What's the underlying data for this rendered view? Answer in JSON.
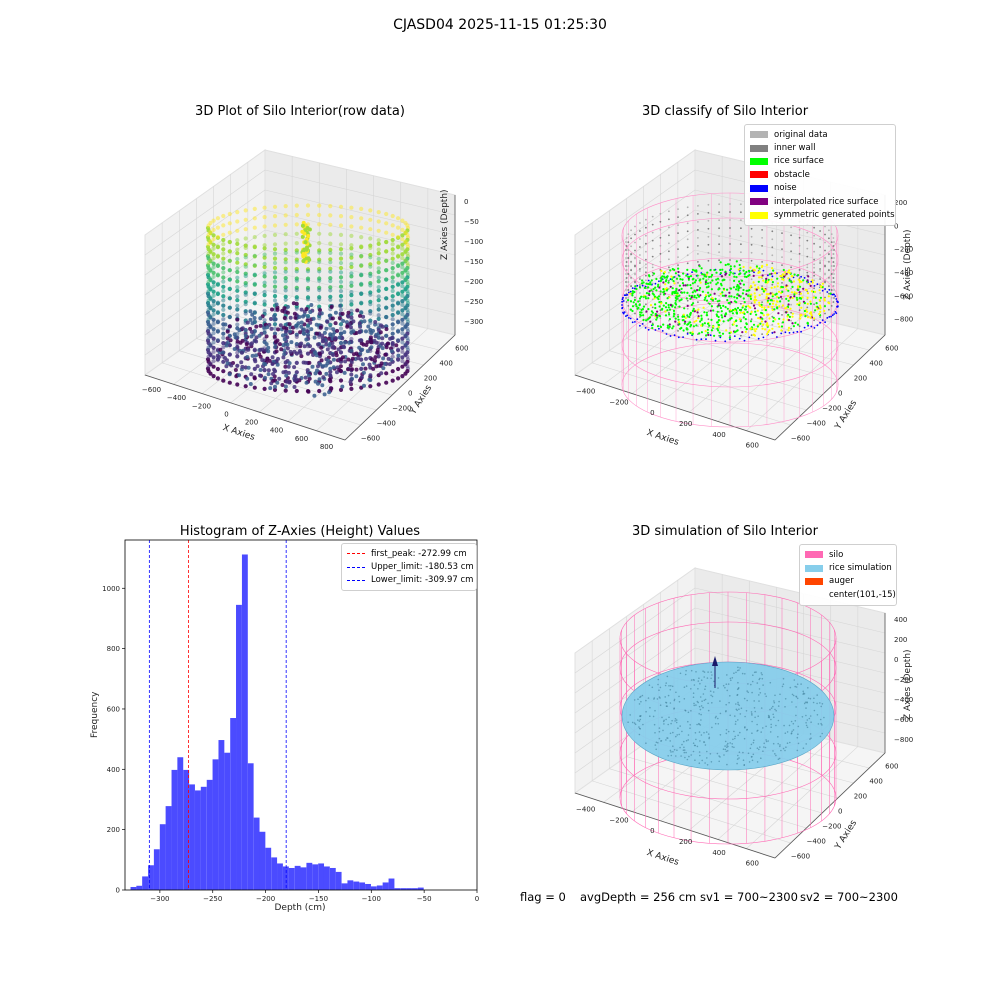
{
  "figure": {
    "title": "CJASD04 2025-11-15 01:25:30"
  },
  "footer": {
    "flag": "flag = 0",
    "avg_depth": "avgDepth = 256 cm",
    "sv1": "sv1 = 700~2300",
    "sv2": "sv2 = 700~2300"
  },
  "chart_data": [
    {
      "type": "scatter",
      "title": "3D Plot of Silo Interior(row data)",
      "xlabel": "X Axies",
      "ylabel": "Y Axies",
      "zlabel": "Z Axies (Depth)",
      "x_ticks": [
        "−600",
        "−400",
        "−200",
        "0",
        "200",
        "400",
        "600",
        "800"
      ],
      "y_ticks": [
        "−600",
        "−400",
        "−200",
        "0",
        "200",
        "400",
        "600"
      ],
      "z_ticks": [
        "0",
        "−50",
        "−100",
        "−150",
        "−200",
        "−250",
        "−300"
      ],
      "colormap": "viridis",
      "zlim": [
        -330,
        0
      ]
    },
    {
      "type": "scatter",
      "title": "3D classify of Silo Interior",
      "xlabel": "X Axies",
      "ylabel": "Y Axies",
      "zlabel": "Z Axies (Depth)",
      "x_ticks": [
        "−400",
        "−200",
        "0",
        "200",
        "400",
        "600"
      ],
      "y_ticks": [
        "−600",
        "−400",
        "−200",
        "0",
        "200",
        "400",
        "600"
      ],
      "z_ticks": [
        "200",
        "0",
        "−200",
        "−400",
        "−600",
        "−800"
      ],
      "legend": [
        {
          "label": "original data",
          "color": "#b3b3b3"
        },
        {
          "label": "inner wall",
          "color": "#808080"
        },
        {
          "label": "rice surface",
          "color": "#00ff00"
        },
        {
          "label": "obstacle",
          "color": "#ff0000"
        },
        {
          "label": "noise",
          "color": "#0000ff"
        },
        {
          "label": "interpolated rice surface",
          "color": "#800080"
        },
        {
          "label": "symmetric generated points",
          "color": "#ffff00"
        }
      ]
    },
    {
      "type": "bar",
      "title": "Histogram of Z-Axies (Height) Values",
      "xlabel": "Depth (cm)",
      "ylabel": "Frequency",
      "xlim": [
        -333,
        0
      ],
      "ylim": [
        0,
        1160
      ],
      "x_ticks": [
        -300,
        -250,
        -200,
        -150,
        -100,
        -50,
        0
      ],
      "y_ticks": [
        0,
        200,
        400,
        600,
        800,
        1000
      ],
      "bar_color": "#4b4bff",
      "bin_width": 5.54,
      "bins": [
        [
          -325.0,
          10
        ],
        [
          -319.5,
          14
        ],
        [
          -314.0,
          45
        ],
        [
          -308.4,
          82
        ],
        [
          -302.9,
          135
        ],
        [
          -297.3,
          218
        ],
        [
          -291.8,
          278
        ],
        [
          -286.2,
          398
        ],
        [
          -280.7,
          440
        ],
        [
          -275.1,
          398
        ],
        [
          -269.6,
          350
        ],
        [
          -264.0,
          330
        ],
        [
          -258.5,
          342
        ],
        [
          -252.9,
          365
        ],
        [
          -247.4,
          433
        ],
        [
          -241.8,
          497
        ],
        [
          -236.3,
          455
        ],
        [
          -230.7,
          570
        ],
        [
          -225.2,
          945
        ],
        [
          -219.6,
          1112
        ],
        [
          -214.1,
          420
        ],
        [
          -208.5,
          240
        ],
        [
          -203.0,
          193
        ],
        [
          -197.5,
          140
        ],
        [
          -191.9,
          108
        ],
        [
          -186.4,
          88
        ],
        [
          -180.8,
          78
        ],
        [
          -175.3,
          73
        ],
        [
          -169.7,
          80
        ],
        [
          -164.2,
          75
        ],
        [
          -158.6,
          90
        ],
        [
          -153.1,
          85
        ],
        [
          -147.5,
          88
        ],
        [
          -142.0,
          78
        ],
        [
          -136.4,
          73
        ],
        [
          -130.9,
          60
        ],
        [
          -125.3,
          22
        ],
        [
          -119.8,
          32
        ],
        [
          -114.2,
          28
        ],
        [
          -108.7,
          25
        ],
        [
          -103.1,
          20
        ],
        [
          -97.6,
          12
        ],
        [
          -92.0,
          15
        ],
        [
          -86.5,
          25
        ],
        [
          -80.9,
          38
        ],
        [
          -75.4,
          6
        ],
        [
          -69.8,
          6
        ],
        [
          -64.3,
          6
        ],
        [
          -58.7,
          6
        ],
        [
          -53.2,
          8
        ]
      ],
      "vlines": [
        {
          "label": "first_peak: -272.99 cm",
          "x": -272.99,
          "color": "#ff0000"
        },
        {
          "label": "Upper_limit: -180.53 cm",
          "x": -180.53,
          "color": "#0000ff"
        },
        {
          "label": "Lower_limit: -309.97 cm",
          "x": -309.97,
          "color": "#0000ff"
        }
      ]
    },
    {
      "type": "scatter",
      "title": "3D simulation of Silo Interior",
      "xlabel": "X Axies",
      "ylabel": "Y Axies",
      "zlabel": "Z Axies (Depth)",
      "x_ticks": [
        "−400",
        "−200",
        "0",
        "200",
        "400",
        "600"
      ],
      "y_ticks": [
        "−600",
        "−400",
        "−200",
        "0",
        "200",
        "400",
        "600"
      ],
      "z_ticks": [
        "400",
        "200",
        "0",
        "−200",
        "−400",
        "−600",
        "−800"
      ],
      "legend": [
        {
          "label": "silo",
          "color": "#ff69b4"
        },
        {
          "label": "rice simulation",
          "color": "#87ceeb"
        },
        {
          "label": "auger",
          "color": "#ff4500"
        },
        {
          "label": "center(101,-15)",
          "color": ""
        }
      ]
    }
  ]
}
